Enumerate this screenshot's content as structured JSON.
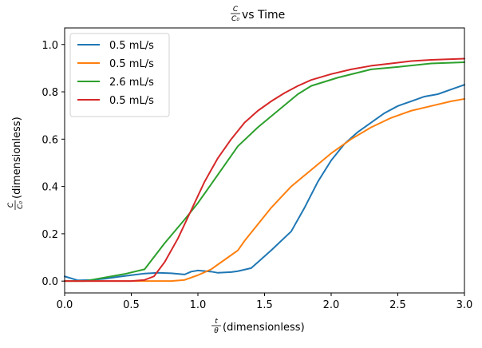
{
  "chart_data": {
    "type": "line",
    "title": {
      "frac_num": "C",
      "frac_den": "C₀",
      "text": "vs Time"
    },
    "xlabel": {
      "frac_num": "t",
      "frac_den": "θ",
      "text": "(dimensionless)"
    },
    "ylabel": {
      "frac_num": "C",
      "frac_den": "C₀",
      "text": "(dimensionless)"
    },
    "xlim": [
      0,
      3
    ],
    "ylim": [
      -0.05,
      1.07
    ],
    "xticks": [
      "0.0",
      "0.5",
      "1.0",
      "1.5",
      "2.0",
      "2.5",
      "3.0"
    ],
    "yticks": [
      "0.0",
      "0.2",
      "0.4",
      "0.6",
      "0.8",
      "1.0"
    ],
    "grid": false,
    "legend_position": "top-left",
    "series": [
      {
        "name": "0.5 mL/s",
        "color": "#1f77b4",
        "points": [
          [
            0.0,
            0.02
          ],
          [
            0.1,
            0.003
          ],
          [
            0.2,
            0.005
          ],
          [
            0.3,
            0.01
          ],
          [
            0.4,
            0.018
          ],
          [
            0.5,
            0.025
          ],
          [
            0.6,
            0.032
          ],
          [
            0.7,
            0.035
          ],
          [
            0.8,
            0.033
          ],
          [
            0.9,
            0.028
          ],
          [
            0.95,
            0.04
          ],
          [
            1.0,
            0.045
          ],
          [
            1.1,
            0.04
          ],
          [
            1.15,
            0.035
          ],
          [
            1.25,
            0.038
          ],
          [
            1.3,
            0.042
          ],
          [
            1.4,
            0.055
          ],
          [
            1.45,
            0.08
          ],
          [
            1.55,
            0.13
          ],
          [
            1.7,
            0.21
          ],
          [
            1.8,
            0.31
          ],
          [
            1.9,
            0.42
          ],
          [
            2.0,
            0.51
          ],
          [
            2.1,
            0.58
          ],
          [
            2.2,
            0.63
          ],
          [
            2.3,
            0.67
          ],
          [
            2.4,
            0.71
          ],
          [
            2.5,
            0.74
          ],
          [
            2.6,
            0.76
          ],
          [
            2.7,
            0.78
          ],
          [
            2.8,
            0.79
          ],
          [
            2.9,
            0.81
          ],
          [
            3.0,
            0.83
          ]
        ]
      },
      {
        "name": "0.5 mL/s",
        "color": "#ff7f0e",
        "points": [
          [
            0.0,
            0.0
          ],
          [
            0.5,
            0.0
          ],
          [
            0.8,
            0.0
          ],
          [
            0.9,
            0.005
          ],
          [
            1.0,
            0.025
          ],
          [
            1.1,
            0.05
          ],
          [
            1.2,
            0.09
          ],
          [
            1.3,
            0.13
          ],
          [
            1.35,
            0.17
          ],
          [
            1.45,
            0.24
          ],
          [
            1.55,
            0.31
          ],
          [
            1.7,
            0.4
          ],
          [
            1.85,
            0.47
          ],
          [
            2.0,
            0.54
          ],
          [
            2.15,
            0.6
          ],
          [
            2.3,
            0.65
          ],
          [
            2.45,
            0.69
          ],
          [
            2.6,
            0.72
          ],
          [
            2.75,
            0.74
          ],
          [
            2.9,
            0.76
          ],
          [
            3.0,
            0.77
          ]
        ]
      },
      {
        "name": "2.6 mL/s",
        "color": "#2ca02c",
        "points": [
          [
            0.0,
            0.0
          ],
          [
            0.15,
            0.0
          ],
          [
            0.3,
            0.015
          ],
          [
            0.45,
            0.03
          ],
          [
            0.6,
            0.05
          ],
          [
            0.75,
            0.16
          ],
          [
            0.9,
            0.26
          ],
          [
            1.0,
            0.33
          ],
          [
            1.1,
            0.41
          ],
          [
            1.2,
            0.49
          ],
          [
            1.3,
            0.57
          ],
          [
            1.45,
            0.65
          ],
          [
            1.6,
            0.72
          ],
          [
            1.75,
            0.79
          ],
          [
            1.85,
            0.825
          ],
          [
            2.05,
            0.86
          ],
          [
            2.3,
            0.895
          ],
          [
            2.5,
            0.905
          ],
          [
            2.75,
            0.92
          ],
          [
            3.0,
            0.925
          ]
        ]
      },
      {
        "name": "0.5 mL/s",
        "color": "#d62728",
        "points": [
          [
            0.0,
            0.0
          ],
          [
            0.5,
            0.0
          ],
          [
            0.6,
            0.005
          ],
          [
            0.67,
            0.02
          ],
          [
            0.75,
            0.08
          ],
          [
            0.85,
            0.18
          ],
          [
            0.95,
            0.3
          ],
          [
            1.05,
            0.42
          ],
          [
            1.15,
            0.52
          ],
          [
            1.25,
            0.6
          ],
          [
            1.35,
            0.67
          ],
          [
            1.45,
            0.72
          ],
          [
            1.55,
            0.76
          ],
          [
            1.65,
            0.795
          ],
          [
            1.75,
            0.825
          ],
          [
            1.85,
            0.85
          ],
          [
            2.0,
            0.875
          ],
          [
            2.15,
            0.895
          ],
          [
            2.3,
            0.91
          ],
          [
            2.45,
            0.92
          ],
          [
            2.6,
            0.93
          ],
          [
            2.75,
            0.935
          ],
          [
            3.0,
            0.94
          ]
        ]
      }
    ]
  }
}
